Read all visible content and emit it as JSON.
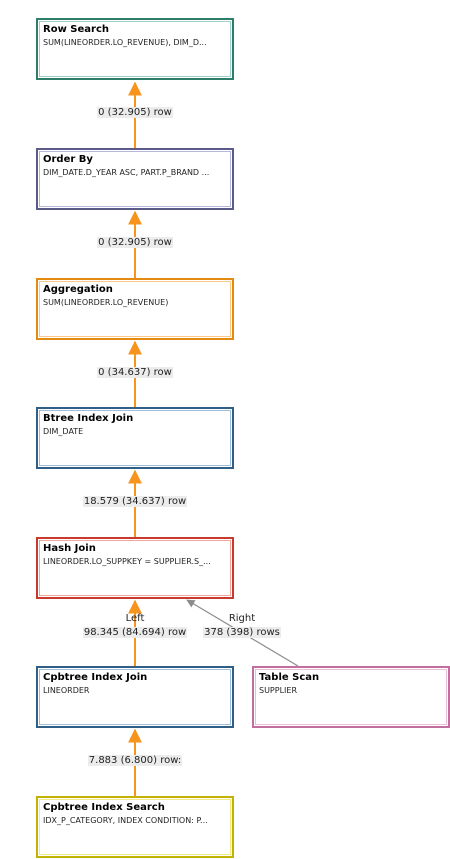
{
  "colors": {
    "edge_primary": "#f7941d",
    "edge_secondary": "#8c8c8c"
  },
  "nodes": {
    "row_search": {
      "title": "Row Search",
      "detail": "SUM(LINEORDER.LO_REVENUE), DIM_D...",
      "border": "#2e7d6b",
      "inner": "#9fd1c4"
    },
    "order_by": {
      "title": "Order By",
      "detail": "DIM_DATE.D_YEAR ASC, PART.P_BRAND ...",
      "border": "#5b5b8a",
      "inner": "#b7b7dc"
    },
    "aggregation": {
      "title": "Aggregation",
      "detail": "SUM(LINEORDER.LO_REVENUE)",
      "border": "#e38a10",
      "inner": "#f8c98a"
    },
    "btree_index_join": {
      "title": "Btree Index Join",
      "detail": "DIM_DATE",
      "border": "#2f5f86",
      "inner": "#9fbdd6"
    },
    "hash_join": {
      "title": "Hash Join",
      "detail": "LINEORDER.LO_SUPPKEY = SUPPLIER.S_...",
      "border": "#c93a2c",
      "inner": "#f0a79e"
    },
    "cpbtree_index_join": {
      "title": "Cpbtree Index Join",
      "detail": "LINEORDER",
      "border": "#2f5f86",
      "inner": "#9fbdd6"
    },
    "table_scan": {
      "title": "Table Scan",
      "detail": "SUPPLIER",
      "border": "#c26fa0",
      "inner": "#ebbfd8"
    },
    "cpbtree_index_search": {
      "title": "Cpbtree Index Search",
      "detail": "IDX_P_CATEGORY, INDEX CONDITION: P...",
      "border": "#c4b200",
      "inner": "#f3ea8a"
    }
  },
  "edges": {
    "e1": {
      "text": "0 (32.905) row"
    },
    "e2": {
      "text": "0 (32.905) row"
    },
    "e3": {
      "text": "0 (34.637) row"
    },
    "e4": {
      "text": "18.579 (34.637) row"
    },
    "e5": {
      "side": "Left",
      "text": "98.345 (84.694) row"
    },
    "e6": {
      "side": "Right",
      "text": "378 (398) rows"
    },
    "e7": {
      "text": "7.883 (6.800) row:"
    }
  }
}
